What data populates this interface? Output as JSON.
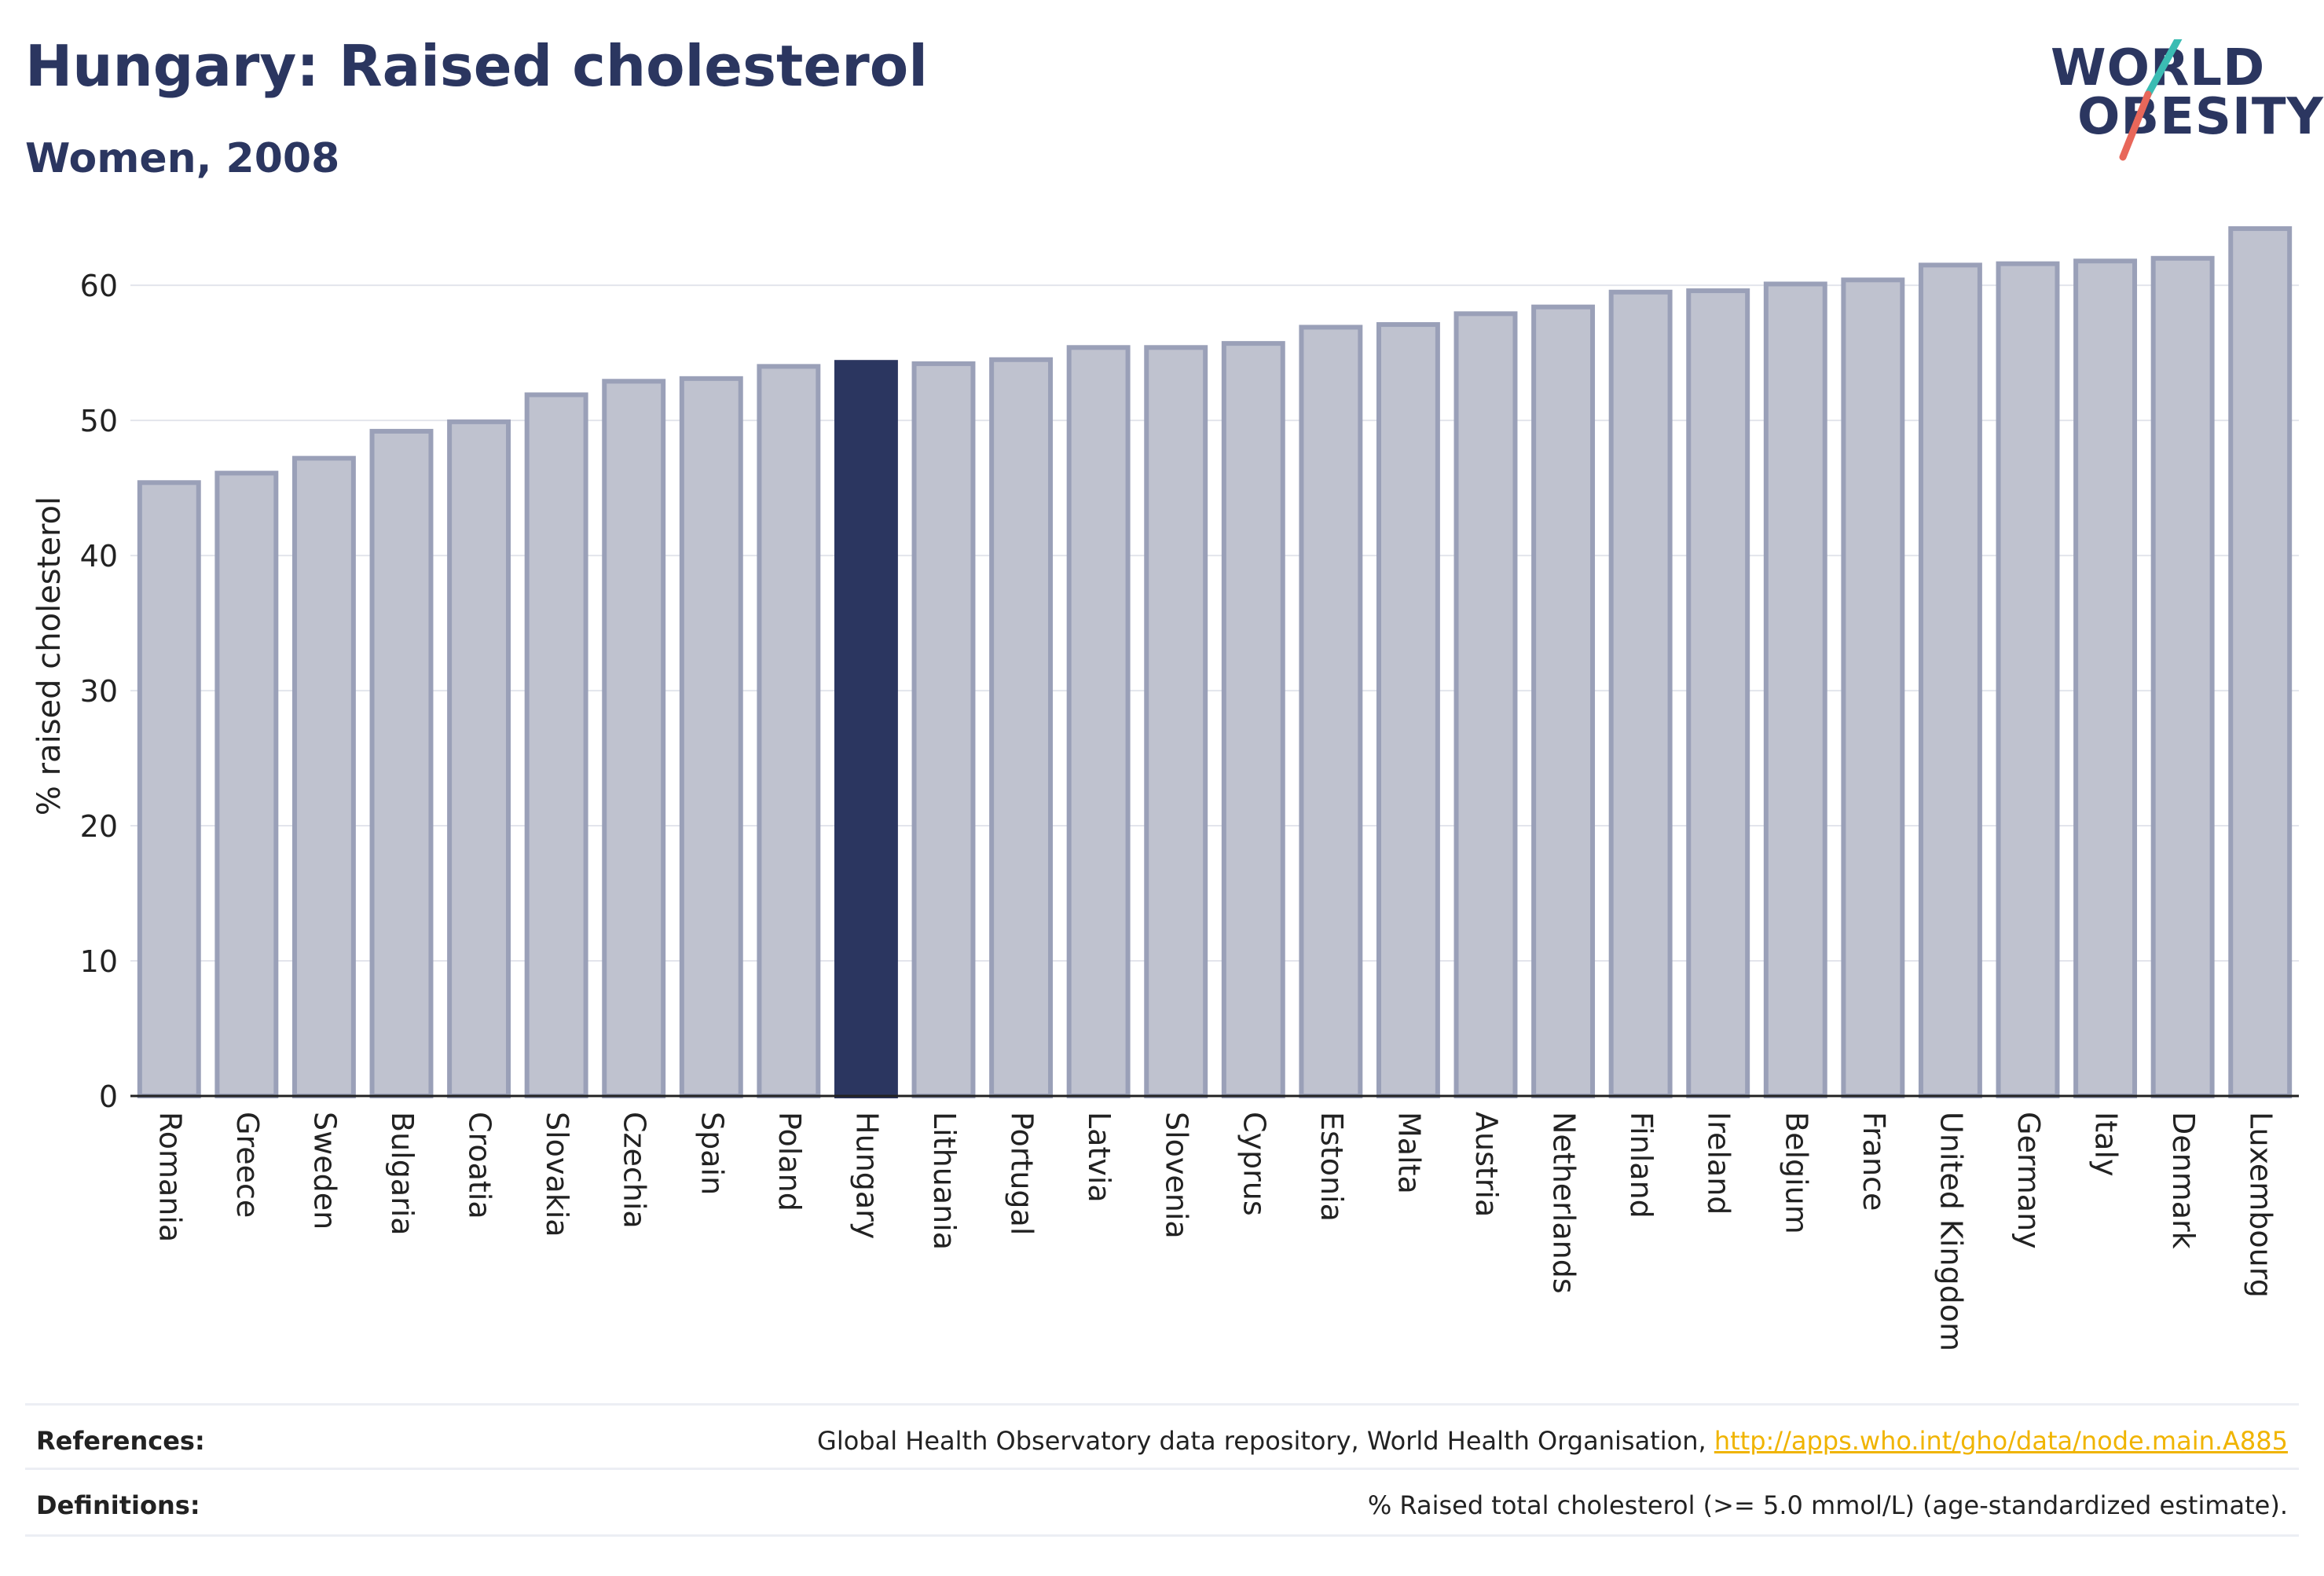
{
  "header": {
    "title": "Hungary: Raised cholesterol",
    "subtitle": "Women, 2008"
  },
  "logo": {
    "line1": "WORLD",
    "line2": "OBESITY",
    "slash_colors": [
      "#3bbcb3",
      "#e8675a"
    ]
  },
  "colors": {
    "bar_fill": "#bfc2cf",
    "bar_stroke": "#9aa0b8",
    "highlight_fill": "#2b3660",
    "grid": "#e3e5ec",
    "axis": "#222222",
    "link": "#f0b400"
  },
  "chart_data": {
    "type": "bar",
    "ylabel": "% raised cholesterol",
    "ylim": [
      0,
      66
    ],
    "yticks": [
      0,
      10,
      20,
      30,
      40,
      50,
      60
    ],
    "grid": true,
    "highlight": "Hungary",
    "categories": [
      "Romania",
      "Greece",
      "Sweden",
      "Bulgaria",
      "Croatia",
      "Slovakia",
      "Czechia",
      "Spain",
      "Poland",
      "Hungary",
      "Lithuania",
      "Portugal",
      "Latvia",
      "Slovenia",
      "Cyprus",
      "Estonia",
      "Malta",
      "Austria",
      "Netherlands",
      "Finland",
      "Ireland",
      "Belgium",
      "France",
      "United Kingdom",
      "Germany",
      "Italy",
      "Denmark",
      "Luxembourg"
    ],
    "values": [
      45.4,
      46.1,
      47.2,
      49.2,
      49.9,
      51.9,
      52.9,
      53.1,
      54.0,
      54.3,
      54.2,
      54.5,
      55.4,
      55.4,
      55.7,
      56.9,
      57.1,
      57.9,
      58.4,
      59.5,
      59.6,
      60.1,
      60.4,
      61.5,
      61.6,
      61.8,
      62.0,
      64.2
    ]
  },
  "footer": {
    "references_label": "References:",
    "references_text": "Global Health Observatory data repository, World Health Organisation, ",
    "references_link": "http://apps.who.int/gho/data/node.main.A885",
    "definitions_label": "Definitions:",
    "definitions_text": "% Raised total cholesterol (>= 5.0 mmol/L) (age-standardized estimate)."
  }
}
